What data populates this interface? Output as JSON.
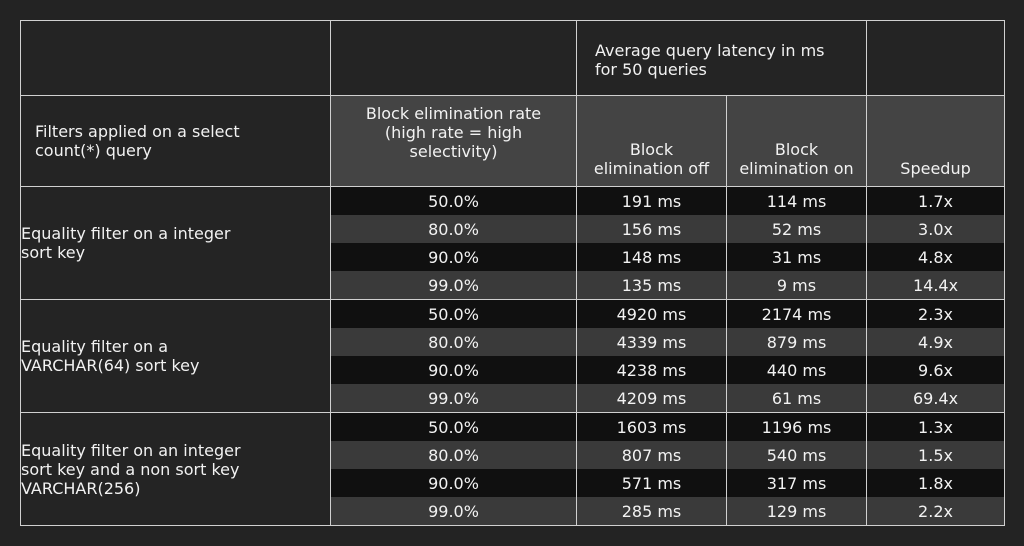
{
  "header": {
    "latency_title": "Average query latency in ms\nfor 50 queries",
    "filters_title": "Filters applied on a select\ncount(*) query",
    "rate_title": "Block elimination rate\n(high rate = high\nselectivity)",
    "off_title": "Block\nelimination off",
    "on_title": "Block\nelimination on",
    "speedup_title": "Speedup"
  },
  "groups": [
    {
      "label": "Equality filter on a integer\nsort key",
      "rows": [
        {
          "rate": "50.0%",
          "off": "191 ms",
          "on": "114 ms",
          "speedup": "1.7x"
        },
        {
          "rate": "80.0%",
          "off": "156 ms",
          "on": "52 ms",
          "speedup": "3.0x"
        },
        {
          "rate": "90.0%",
          "off": "148 ms",
          "on": "31 ms",
          "speedup": "4.8x"
        },
        {
          "rate": "99.0%",
          "off": "135 ms",
          "on": "9 ms",
          "speedup": "14.4x"
        }
      ]
    },
    {
      "label": "Equality filter on a\nVARCHAR(64) sort key",
      "rows": [
        {
          "rate": "50.0%",
          "off": "4920 ms",
          "on": "2174 ms",
          "speedup": "2.3x"
        },
        {
          "rate": "80.0%",
          "off": "4339 ms",
          "on": "879 ms",
          "speedup": "4.9x"
        },
        {
          "rate": "90.0%",
          "off": "4238 ms",
          "on": "440 ms",
          "speedup": "9.6x"
        },
        {
          "rate": "99.0%",
          "off": "4209 ms",
          "on": "61 ms",
          "speedup": "69.4x"
        }
      ]
    },
    {
      "label": "Equality filter on an integer\nsort key and a non sort key\nVARCHAR(256)",
      "rows": [
        {
          "rate": "50.0%",
          "off": "1603 ms",
          "on": "1196 ms",
          "speedup": "1.3x"
        },
        {
          "rate": "80.0%",
          "off": "807 ms",
          "on": "540 ms",
          "speedup": "1.5x"
        },
        {
          "rate": "90.0%",
          "off": "571 ms",
          "on": "317 ms",
          "speedup": "1.8x"
        },
        {
          "rate": "99.0%",
          "off": "285 ms",
          "on": "129 ms",
          "speedup": "2.2x"
        }
      ]
    }
  ]
}
